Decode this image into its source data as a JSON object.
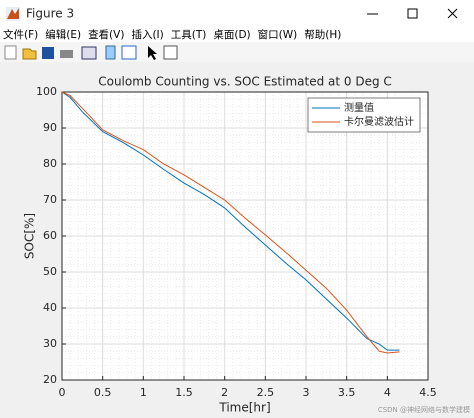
{
  "window": {
    "title": "Figure 3"
  },
  "menu": [
    "文件(F)",
    "编辑(E)",
    "查看(V)",
    "插入(I)",
    "工具(T)",
    "桌面(D)",
    "窗口(W)",
    "帮助(H)"
  ],
  "watermark": "CSDN @神经网络与数学建模",
  "chart_data": {
    "type": "line",
    "title": "Coulomb Counting vs. SOC Estimated at 0 Deg C",
    "x_label": "Time[hr]",
    "y_label": "SOC[%]",
    "x": [
      0,
      0.1,
      0.25,
      0.5,
      0.75,
      1,
      1.25,
      1.5,
      1.75,
      2,
      2.25,
      2.5,
      2.75,
      3,
      3.25,
      3.5,
      3.75,
      3.9,
      4,
      4.15
    ],
    "series": [
      {
        "name": "测量值",
        "color": "#0072bd",
        "values": [
          100,
          98.5,
          94.5,
          89,
          86,
          82.5,
          78.5,
          74.7,
          71.5,
          67.8,
          62.5,
          57.5,
          52.5,
          47.8,
          42.5,
          37.2,
          31.5,
          30,
          28.3,
          28.3
        ]
      },
      {
        "name": "卡尔曼滤波估计",
        "color": "#d95319",
        "values": [
          100,
          99,
          95.5,
          89.5,
          86.5,
          84,
          80,
          77,
          73.5,
          70,
          65,
          60.3,
          55.5,
          50.5,
          45.5,
          39.4,
          32,
          28,
          27.5,
          27.8
        ]
      }
    ],
    "xlim": [
      0,
      4.5
    ],
    "xticks": [
      0,
      0.5,
      1,
      1.5,
      2,
      2.5,
      3,
      3.5,
      4,
      4.5
    ],
    "ylim": [
      20,
      100
    ],
    "yticks": [
      20,
      30,
      40,
      50,
      60,
      70,
      80,
      90,
      100
    ],
    "grid": true,
    "minor_grid": true,
    "legend": "top-right"
  }
}
